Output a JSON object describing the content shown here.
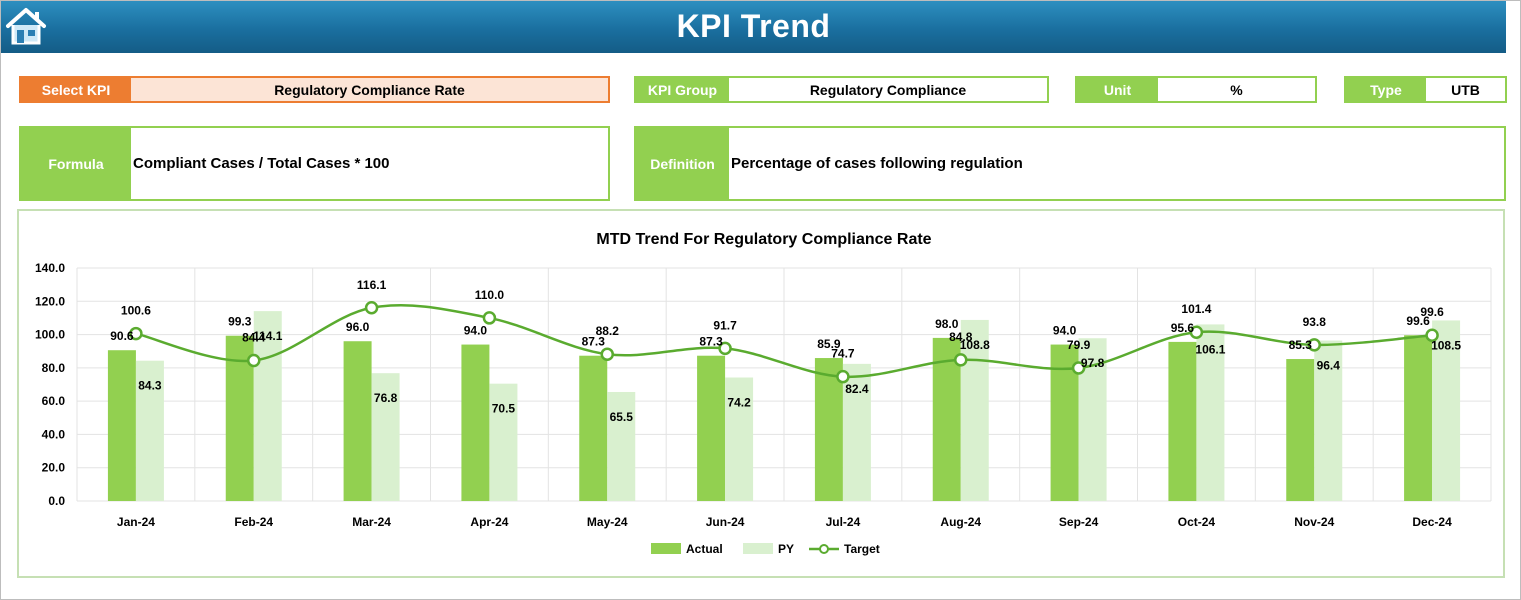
{
  "header": {
    "title": "KPI Trend",
    "home_icon": "home-icon"
  },
  "fields": {
    "select_kpi": {
      "label": "Select KPI",
      "value": "Regulatory Compliance Rate"
    },
    "kpi_group": {
      "label": "KPI Group",
      "value": "Regulatory Compliance"
    },
    "unit": {
      "label": "Unit",
      "value": "%"
    },
    "type": {
      "label": "Type",
      "value": "UTB"
    },
    "formula": {
      "label": "Formula",
      "value": "Compliant Cases / Total Cases * 100"
    },
    "definition": {
      "label": "Definition",
      "value": "Percentage of cases following regulation"
    }
  },
  "colors": {
    "header": "#1a6f9f",
    "accent_green": "#92d050",
    "select_orange": "#ed7d31",
    "actual": "#92d050",
    "py": "#d9f0cf",
    "target": "#5aab2f"
  },
  "chart_data": {
    "type": "bar",
    "title": "MTD Trend For Regulatory Compliance Rate",
    "categories": [
      "Jan-24",
      "Feb-24",
      "Mar-24",
      "Apr-24",
      "May-24",
      "Jun-24",
      "Jul-24",
      "Aug-24",
      "Sep-24",
      "Oct-24",
      "Nov-24",
      "Dec-24"
    ],
    "series": [
      {
        "name": "Actual",
        "kind": "bar",
        "values": [
          90.6,
          99.3,
          96.0,
          94.0,
          87.3,
          87.3,
          85.9,
          98.0,
          94.0,
          95.6,
          85.3,
          99.6
        ]
      },
      {
        "name": "PY",
        "kind": "bar",
        "values": [
          84.3,
          114.1,
          76.8,
          70.5,
          65.5,
          74.2,
          82.4,
          108.8,
          97.8,
          106.1,
          96.4,
          108.5
        ]
      },
      {
        "name": "Target",
        "kind": "line",
        "values": [
          100.6,
          84.4,
          116.1,
          110.0,
          88.2,
          91.7,
          74.7,
          84.8,
          79.9,
          101.4,
          93.8,
          99.6
        ]
      }
    ],
    "ylim": [
      0,
      140
    ],
    "yticks": [
      "0.0",
      "20.0",
      "40.0",
      "60.0",
      "80.0",
      "100.0",
      "120.0",
      "140.0"
    ],
    "grid": true,
    "legend": "bottom"
  }
}
